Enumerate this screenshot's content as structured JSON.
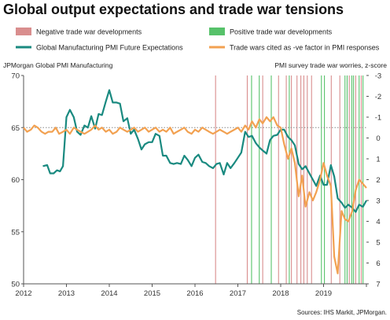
{
  "title": "Global output expectations and trade war tensions",
  "source": "Sources: IHS Markit, JPMorgan.",
  "colors": {
    "negative": "#d98e8e",
    "positive": "#57c26a",
    "pmi": "#1a8a80",
    "tradewar": "#f2a151",
    "dotted": "#888888",
    "axis": "#555555"
  },
  "chart_data": {
    "type": "line",
    "title": "Global output expectations and trade war tensions",
    "ylabel_left": "JPMorgan Global PMI Manufacturing",
    "ylabel_right": "PMI survey trade war worries, z-score",
    "left_axis": {
      "min": 50,
      "max": 70,
      "ticks": [
        50,
        55,
        60,
        65,
        70
      ]
    },
    "right_axis": {
      "min": -3,
      "max": 7,
      "inverted": true,
      "ticks": [
        -3,
        -2,
        -1,
        0,
        1,
        2,
        3,
        4,
        5,
        6,
        7
      ]
    },
    "x_axis": {
      "min": 2012.0,
      "max": 2020.0,
      "ticks": [
        "2012",
        "2013",
        "2014",
        "2015",
        "2016",
        "2017",
        "2018",
        "2019"
      ],
      "tick_values": [
        2012,
        2013,
        2014,
        2015,
        2016,
        2017,
        2018,
        2019
      ]
    },
    "legend": [
      {
        "name": "Negative trade war developments",
        "style": "vline",
        "color_key": "negative"
      },
      {
        "name": "Positive trade war developments",
        "style": "vline",
        "color_key": "positive"
      },
      {
        "name": "Global Manufacturing PMI Future Expectations",
        "style": "line",
        "color_key": "pmi"
      },
      {
        "name": "Trade wars cited as -ve factor in PMI responses",
        "style": "line",
        "color_key": "tradewar"
      }
    ],
    "reference_line": {
      "axis": "left",
      "value": 65,
      "style": "dotted"
    },
    "negative_events": [
      2016.48,
      2017.22,
      2017.58,
      2017.95,
      2018.13,
      2018.25,
      2018.38,
      2018.47,
      2018.54,
      2018.62,
      2018.72,
      2019.18,
      2019.38,
      2019.6,
      2019.75,
      2019.88
    ],
    "positive_events": [
      2017.32,
      2017.5,
      2017.78,
      2018.2,
      2018.95,
      2019.02,
      2019.5,
      2019.55,
      2019.66,
      2019.7,
      2019.83,
      2019.92
    ],
    "series": [
      {
        "name": "Global Manufacturing PMI Future Expectations",
        "axis": "left",
        "color_key": "pmi",
        "x": [
          2012.45,
          2012.55,
          2012.62,
          2012.7,
          2012.78,
          2012.85,
          2012.92,
          2013.0,
          2013.08,
          2013.17,
          2013.25,
          2013.33,
          2013.42,
          2013.5,
          2013.58,
          2013.67,
          2013.75,
          2013.83,
          2013.92,
          2014.0,
          2014.08,
          2014.17,
          2014.25,
          2014.33,
          2014.42,
          2014.5,
          2014.58,
          2014.67,
          2014.75,
          2014.83,
          2014.92,
          2015.0,
          2015.08,
          2015.17,
          2015.25,
          2015.33,
          2015.42,
          2015.5,
          2015.58,
          2015.67,
          2015.75,
          2015.83,
          2015.92,
          2016.0,
          2016.08,
          2016.17,
          2016.25,
          2016.33,
          2016.42,
          2016.5,
          2016.58,
          2016.67,
          2016.75,
          2016.83,
          2016.92,
          2017.0,
          2017.08,
          2017.17,
          2017.25,
          2017.33,
          2017.42,
          2017.5,
          2017.58,
          2017.67,
          2017.75,
          2017.83,
          2017.92,
          2018.0,
          2018.08,
          2018.17,
          2018.25,
          2018.33,
          2018.42,
          2018.5,
          2018.58,
          2018.67,
          2018.75,
          2018.83,
          2018.92,
          2019.0,
          2019.08,
          2019.17,
          2019.25,
          2019.33,
          2019.42,
          2019.5,
          2019.58,
          2019.67,
          2019.75,
          2019.83,
          2019.92,
          2020.0
        ],
        "y": [
          61.3,
          61.4,
          60.6,
          60.6,
          60.9,
          60.8,
          61.3,
          66.0,
          66.7,
          66.0,
          64.6,
          64.3,
          65.2,
          65.0,
          66.1,
          64.9,
          66.3,
          66.2,
          67.5,
          68.6,
          67.4,
          67.4,
          67.3,
          65.6,
          65.9,
          64.4,
          64.8,
          63.9,
          62.9,
          63.4,
          63.6,
          63.6,
          64.4,
          64.2,
          62.3,
          62.3,
          61.6,
          61.5,
          61.6,
          61.5,
          62.3,
          61.9,
          61.3,
          62.1,
          62.4,
          61.7,
          61.6,
          61.3,
          61.1,
          61.5,
          61.6,
          60.5,
          61.6,
          61.1,
          61.6,
          62.1,
          62.6,
          64.6,
          64.1,
          64.2,
          63.5,
          63.1,
          62.8,
          62.5,
          63.8,
          64.2,
          64.3,
          64.8,
          64.8,
          64.1,
          63.8,
          63.3,
          61.5,
          61.0,
          61.3,
          60.6,
          60.0,
          59.4,
          60.4,
          59.5,
          59.5,
          61.4,
          60.3,
          58.2,
          57.8,
          57.3,
          57.6,
          57.3,
          56.9,
          57.6,
          57.4,
          58.0
        ]
      },
      {
        "name": "Trade wars cited as -ve factor in PMI responses",
        "axis": "right",
        "color_key": "tradewar",
        "x": [
          2012.0,
          2012.08,
          2012.17,
          2012.25,
          2012.33,
          2012.42,
          2012.5,
          2012.58,
          2012.67,
          2012.75,
          2012.83,
          2012.92,
          2013.0,
          2013.08,
          2013.17,
          2013.25,
          2013.33,
          2013.42,
          2013.5,
          2013.58,
          2013.67,
          2013.75,
          2013.83,
          2013.92,
          2014.0,
          2014.08,
          2014.17,
          2014.25,
          2014.33,
          2014.42,
          2014.5,
          2014.58,
          2014.67,
          2014.75,
          2014.83,
          2014.92,
          2015.0,
          2015.08,
          2015.17,
          2015.25,
          2015.33,
          2015.42,
          2015.5,
          2015.58,
          2015.67,
          2015.75,
          2015.83,
          2015.92,
          2016.0,
          2016.08,
          2016.17,
          2016.25,
          2016.33,
          2016.42,
          2016.5,
          2016.58,
          2016.67,
          2016.75,
          2016.83,
          2016.92,
          2017.0,
          2017.08,
          2017.17,
          2017.25,
          2017.33,
          2017.42,
          2017.5,
          2017.58,
          2017.67,
          2017.75,
          2017.83,
          2017.92,
          2018.0,
          2018.08,
          2018.17,
          2018.25,
          2018.33,
          2018.42,
          2018.5,
          2018.58,
          2018.67,
          2018.75,
          2018.83,
          2018.92,
          2019.0,
          2019.08,
          2019.17,
          2019.25,
          2019.33,
          2019.42,
          2019.5,
          2019.58,
          2019.67,
          2019.75,
          2019.83,
          2019.92,
          2020.0
        ],
        "y": [
          -0.5,
          -0.3,
          -0.4,
          -0.6,
          -0.5,
          -0.3,
          -0.2,
          -0.3,
          -0.3,
          -0.5,
          -0.2,
          -0.3,
          -0.4,
          -0.2,
          -0.5,
          -0.4,
          -0.3,
          -0.2,
          -0.3,
          -0.4,
          -0.6,
          -0.4,
          -0.5,
          -0.3,
          -0.4,
          -0.2,
          -0.3,
          -0.5,
          -0.4,
          -0.3,
          -0.4,
          -0.5,
          -0.3,
          -0.4,
          -0.5,
          -0.3,
          -0.4,
          -0.5,
          -0.3,
          -0.4,
          -0.3,
          -0.5,
          -0.2,
          -0.3,
          -0.4,
          -0.5,
          -0.3,
          -0.2,
          -0.4,
          -0.3,
          -0.5,
          -0.4,
          -0.3,
          -0.2,
          -0.3,
          -0.4,
          -0.3,
          -0.2,
          -0.3,
          -0.4,
          -0.5,
          -0.3,
          -0.6,
          -0.4,
          -0.8,
          -0.5,
          -0.9,
          -0.7,
          -1.0,
          -0.8,
          -1.0,
          -0.6,
          -0.5,
          0.3,
          1.0,
          0.5,
          1.2,
          2.8,
          1.8,
          3.3,
          2.6,
          3.0,
          2.6,
          2.0,
          1.2,
          1.8,
          2.3,
          5.7,
          6.5,
          3.5,
          3.9,
          4.0,
          3.5,
          2.5,
          2.0,
          2.2,
          2.4
        ]
      }
    ]
  }
}
